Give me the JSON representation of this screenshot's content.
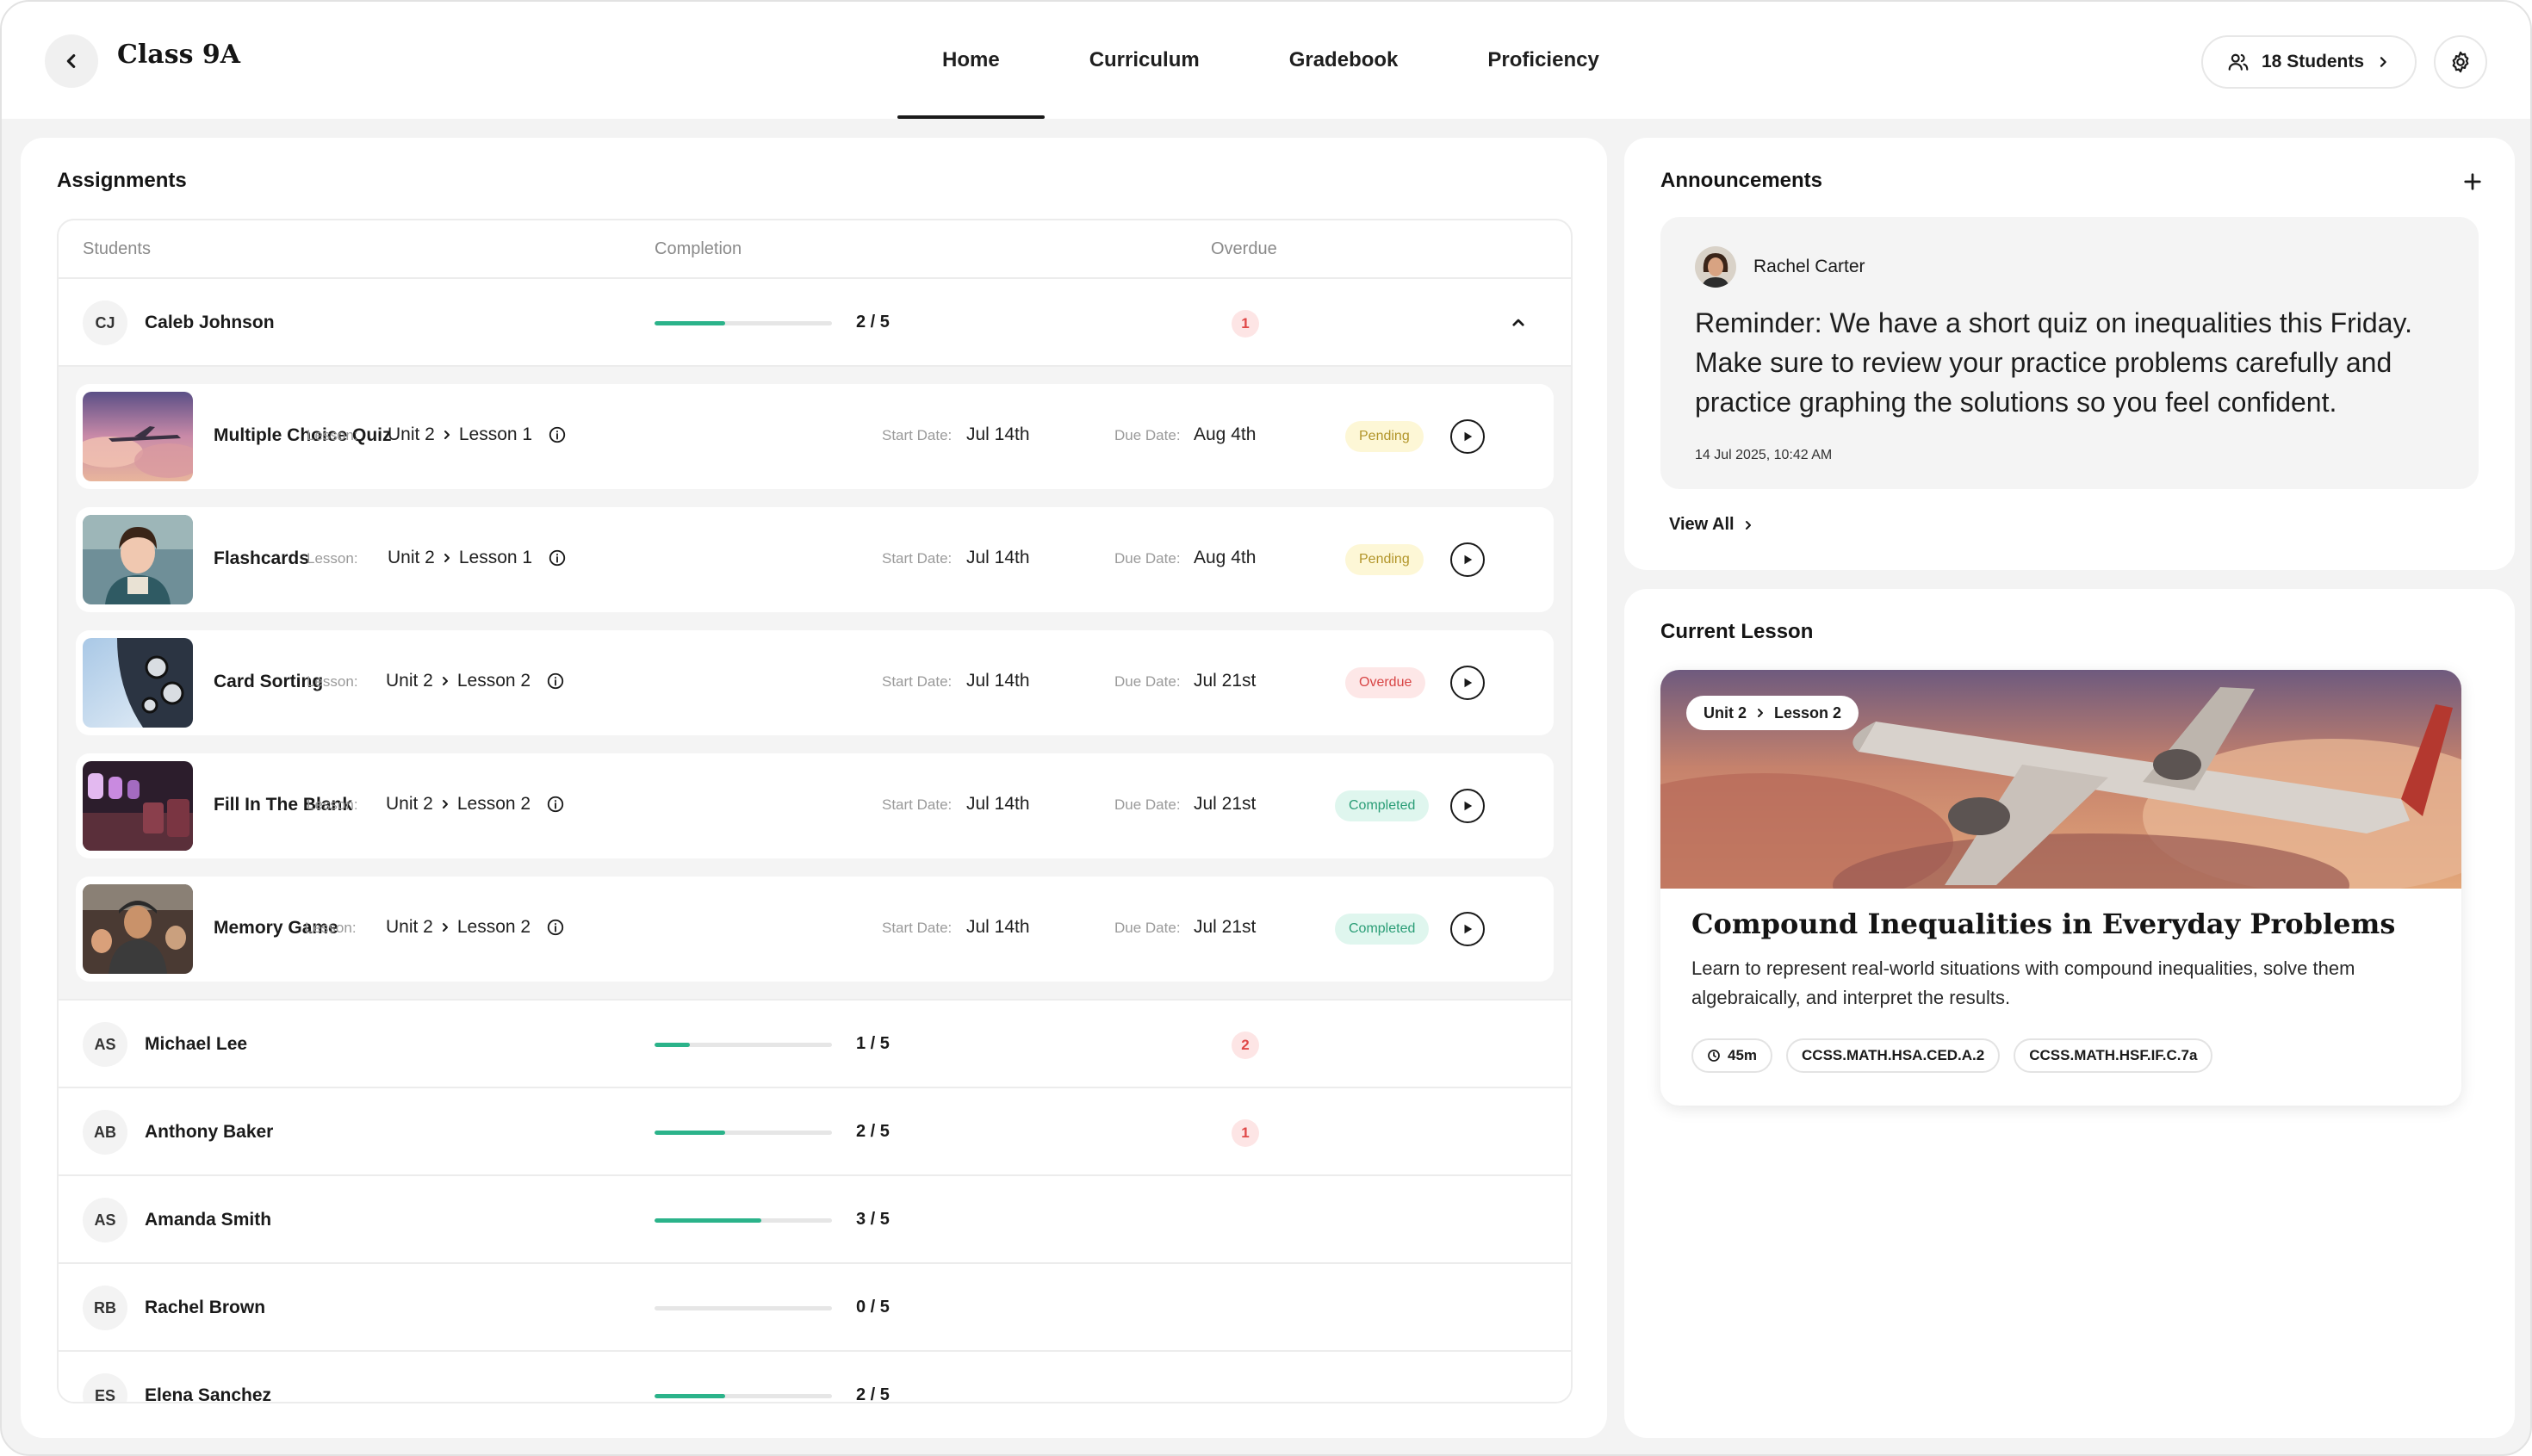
{
  "header": {
    "class_title": "Class 9A",
    "tabs": [
      "Home",
      "Curriculum",
      "Gradebook",
      "Proficiency"
    ],
    "active_tab": "Home",
    "students_label": "18 Students"
  },
  "assignments": {
    "title": "Assignments",
    "columns": {
      "students": "Students",
      "completion": "Completion",
      "overdue": "Overdue"
    },
    "labels": {
      "lesson": "Lesson:",
      "start": "Start Date:",
      "due": "Due Date:"
    },
    "expanded_student": {
      "initials": "CJ",
      "name": "Caleb Johnson",
      "completed": 2,
      "total": 5,
      "progress_text": "2 / 5",
      "overdue": "1"
    },
    "items": [
      {
        "name": "Multiple Choice Quiz",
        "unit": "Unit 2",
        "lesson": "Lesson 1",
        "start": "Jul 14th",
        "due": "Aug 4th",
        "status": "Pending",
        "status_kind": "pending"
      },
      {
        "name": "Flashcards",
        "unit": "Unit 2",
        "lesson": "Lesson 1",
        "start": "Jul 14th",
        "due": "Aug 4th",
        "status": "Pending",
        "status_kind": "pending"
      },
      {
        "name": "Card Sorting",
        "unit": "Unit 2",
        "lesson": "Lesson 2",
        "start": "Jul 14th",
        "due": "Jul 21st",
        "status": "Overdue",
        "status_kind": "overdue"
      },
      {
        "name": "Fill In The Blank",
        "unit": "Unit 2",
        "lesson": "Lesson 2",
        "start": "Jul 14th",
        "due": "Jul 21st",
        "status": "Completed",
        "status_kind": "completed"
      },
      {
        "name": "Memory Game",
        "unit": "Unit 2",
        "lesson": "Lesson 2",
        "start": "Jul 14th",
        "due": "Jul 21st",
        "status": "Completed",
        "status_kind": "completed"
      }
    ],
    "students": [
      {
        "initials": "AS",
        "name": "Michael Lee",
        "completed": 1,
        "total": 5,
        "progress_text": "1 / 5",
        "overdue": "2"
      },
      {
        "initials": "AB",
        "name": "Anthony Baker",
        "completed": 2,
        "total": 5,
        "progress_text": "2 / 5",
        "overdue": "1"
      },
      {
        "initials": "AS",
        "name": "Amanda Smith",
        "completed": 3,
        "total": 5,
        "progress_text": "3 / 5",
        "overdue": ""
      },
      {
        "initials": "RB",
        "name": "Rachel Brown",
        "completed": 0,
        "total": 5,
        "progress_text": "0 / 5",
        "overdue": ""
      },
      {
        "initials": "ES",
        "name": "Elena Sanchez",
        "completed": 2,
        "total": 5,
        "progress_text": "2 / 5",
        "overdue": ""
      }
    ]
  },
  "announcements": {
    "title": "Announcements",
    "author": "Rachel Carter",
    "text": "Reminder: We have a short quiz on inequalities this Friday. Make sure to review your practice problems carefully and practice graphing the solutions so you feel confident.",
    "timestamp": "14 Jul 2025, 10:42 AM",
    "view_all": "View All"
  },
  "current_lesson": {
    "title": "Current Lesson",
    "unit": "Unit 2",
    "lesson": "Lesson 2",
    "lesson_title": "Compound Inequalities in Everyday Problems",
    "description": "Learn to represent real-world situations with compound inequalities, solve them algebraically, and interpret the results.",
    "duration": "45m",
    "standards": [
      "CCSS.MATH.HSA.CED.A.2",
      "CCSS.MATH.HSF.IF.C.7a"
    ]
  },
  "colors": {
    "accent_green": "#2bb38a",
    "pending": "#b2952a",
    "overdue": "#d84545",
    "completed": "#2a9d76"
  }
}
